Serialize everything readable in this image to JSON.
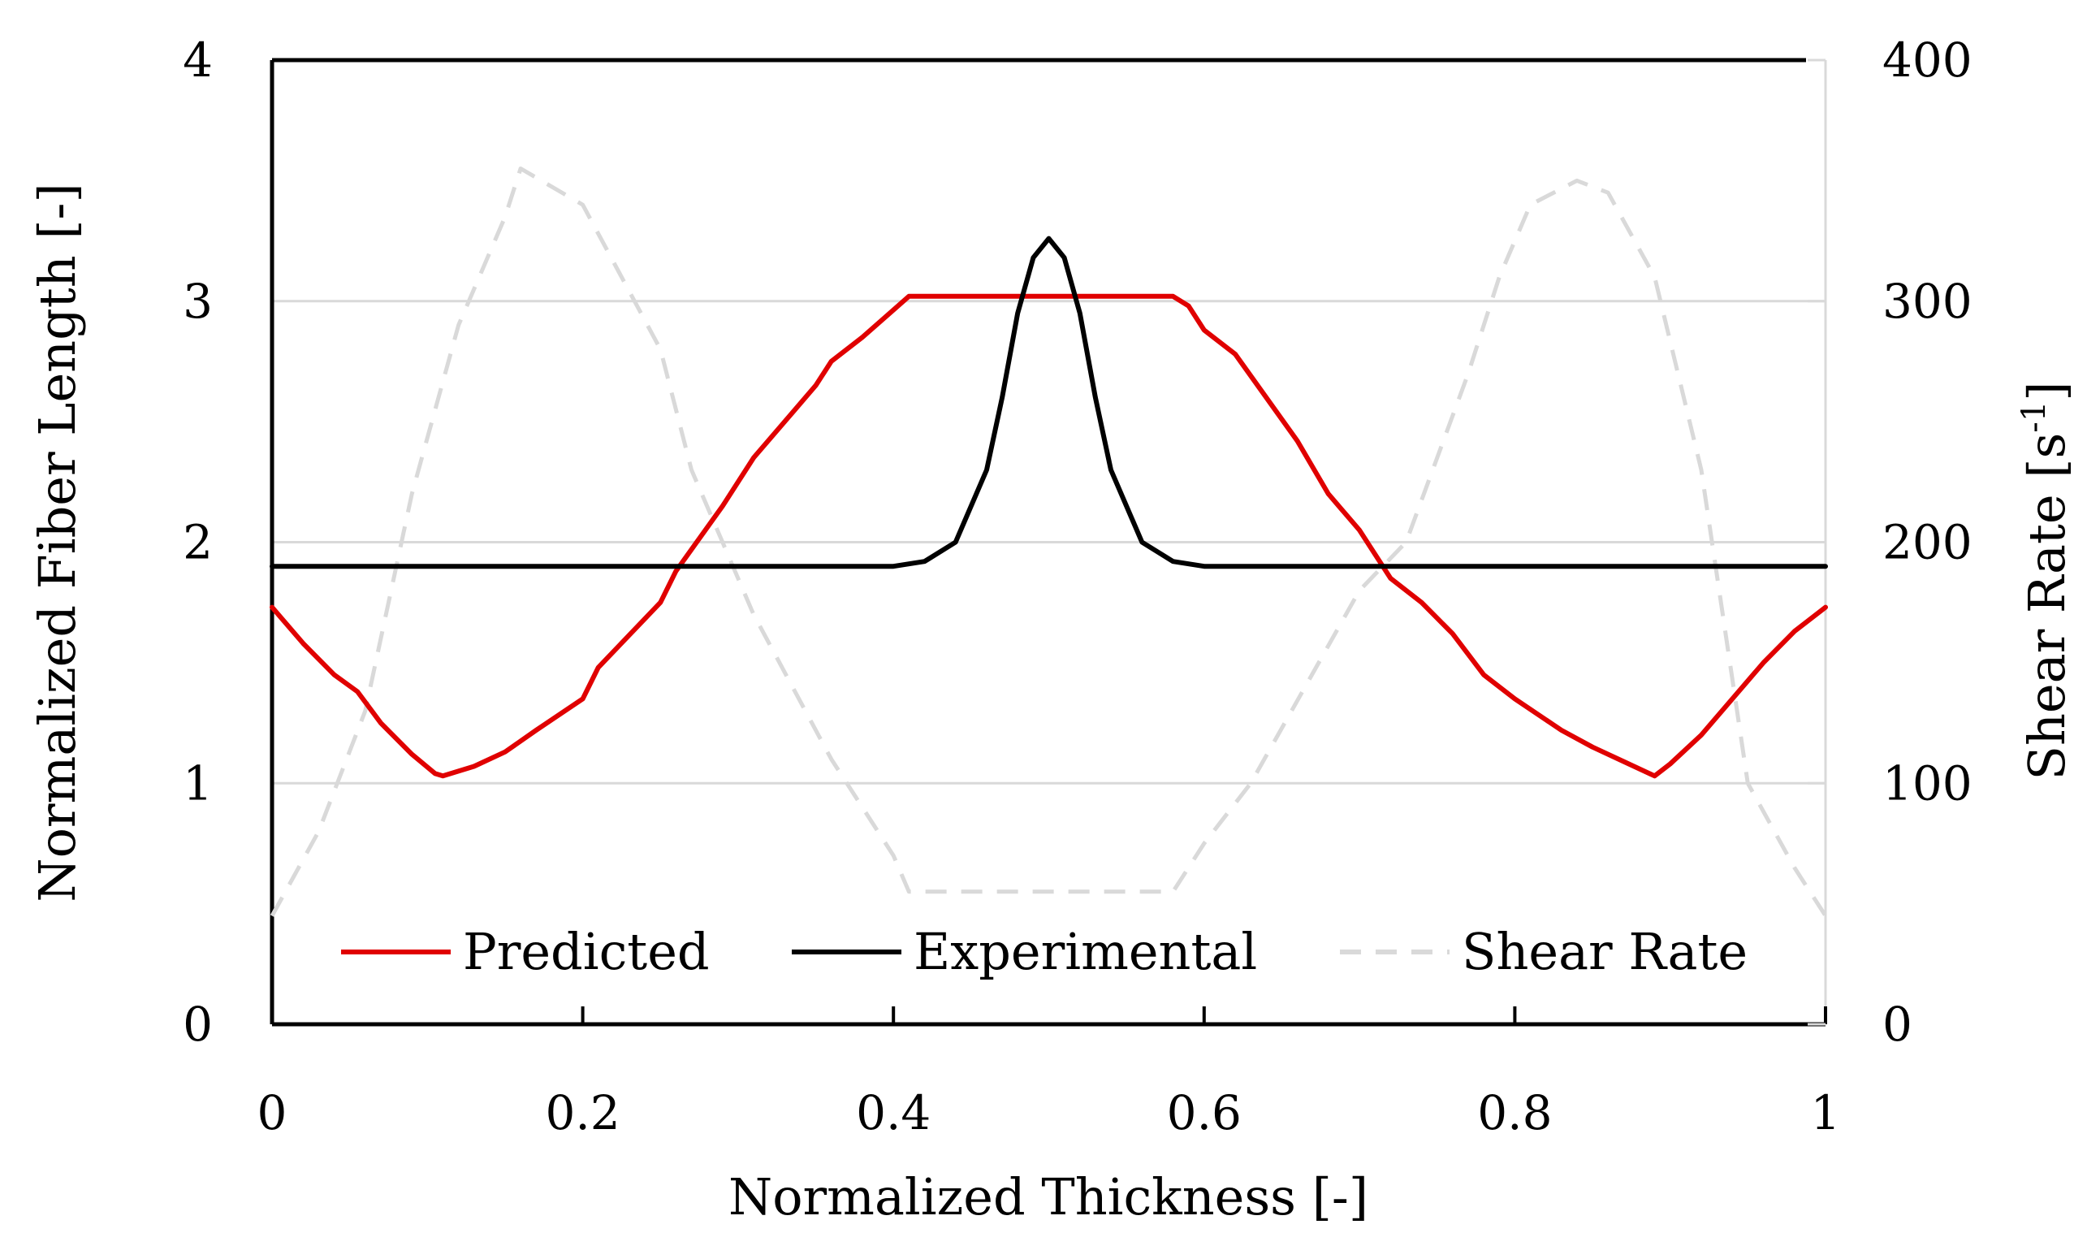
{
  "chart_data": {
    "type": "line",
    "title": "",
    "xlabel": "Normalized Thickness [-]",
    "ylabel": "Normalized Fiber Length [-]",
    "y2label": "Shear Rate [s-1]",
    "y2label_base": "Shear Rate [s",
    "y2label_sup": "-1",
    "y2label_end": "]",
    "xlim": [
      0,
      1
    ],
    "ylim": [
      0,
      4
    ],
    "y2lim": [
      0,
      400
    ],
    "xticks": [
      "0",
      "0.2",
      "0.4",
      "0.6",
      "0.8",
      "1"
    ],
    "yticks": [
      "0",
      "1",
      "2",
      "3",
      "4"
    ],
    "y2ticks": [
      "0",
      "100",
      "200",
      "300",
      "400"
    ],
    "grid": "horizontal",
    "legend_position": "bottom-inside",
    "series": [
      {
        "name": "Predicted",
        "axis": "left",
        "color": "#e00000",
        "dash": "solid",
        "x": [
          0,
          0.02,
          0.04,
          0.055,
          0.07,
          0.09,
          0.105,
          0.11,
          0.13,
          0.15,
          0.17,
          0.2,
          0.21,
          0.25,
          0.26,
          0.29,
          0.31,
          0.33,
          0.35,
          0.36,
          0.38,
          0.41,
          0.42,
          0.5,
          0.58,
          0.59,
          0.6,
          0.62,
          0.64,
          0.66,
          0.68,
          0.7,
          0.72,
          0.74,
          0.76,
          0.78,
          0.8,
          0.83,
          0.85,
          0.87,
          0.89,
          0.9,
          0.92,
          0.94,
          0.96,
          0.98,
          1
        ],
        "values": [
          1.73,
          1.58,
          1.45,
          1.38,
          1.25,
          1.12,
          1.04,
          1.03,
          1.07,
          1.13,
          1.22,
          1.35,
          1.48,
          1.75,
          1.88,
          2.15,
          2.35,
          2.5,
          2.65,
          2.75,
          2.85,
          3.02,
          3.02,
          3.02,
          3.02,
          2.98,
          2.88,
          2.78,
          2.6,
          2.42,
          2.2,
          2.05,
          1.85,
          1.75,
          1.62,
          1.45,
          1.35,
          1.22,
          1.15,
          1.09,
          1.03,
          1.08,
          1.2,
          1.35,
          1.5,
          1.63,
          1.73
        ]
      },
      {
        "name": "Experimental",
        "axis": "left",
        "color": "#000000",
        "dash": "solid",
        "x": [
          0,
          0.4,
          0.42,
          0.44,
          0.46,
          0.47,
          0.48,
          0.49,
          0.5,
          0.51,
          0.52,
          0.53,
          0.54,
          0.56,
          0.58,
          0.6,
          1
        ],
        "values": [
          1.9,
          1.9,
          1.92,
          2.0,
          2.3,
          2.6,
          2.95,
          3.18,
          3.26,
          3.18,
          2.95,
          2.6,
          2.3,
          2.0,
          1.92,
          1.9,
          1.9
        ]
      },
      {
        "name": "Shear Rate",
        "axis": "right",
        "color": "#d9d9d9",
        "dash": "dashed",
        "x": [
          0,
          0.03,
          0.06,
          0.09,
          0.12,
          0.15,
          0.16,
          0.2,
          0.25,
          0.27,
          0.31,
          0.36,
          0.4,
          0.41,
          0.5,
          0.58,
          0.6,
          0.63,
          0.7,
          0.73,
          0.77,
          0.79,
          0.81,
          0.84,
          0.86,
          0.89,
          0.92,
          0.95,
          0.98,
          1
        ],
        "values": [
          45,
          80,
          130,
          220,
          290,
          335,
          355,
          340,
          280,
          230,
          170,
          110,
          70,
          55,
          55,
          55,
          75,
          100,
          180,
          200,
          270,
          310,
          340,
          350,
          345,
          310,
          230,
          100,
          65,
          45
        ]
      }
    ]
  }
}
